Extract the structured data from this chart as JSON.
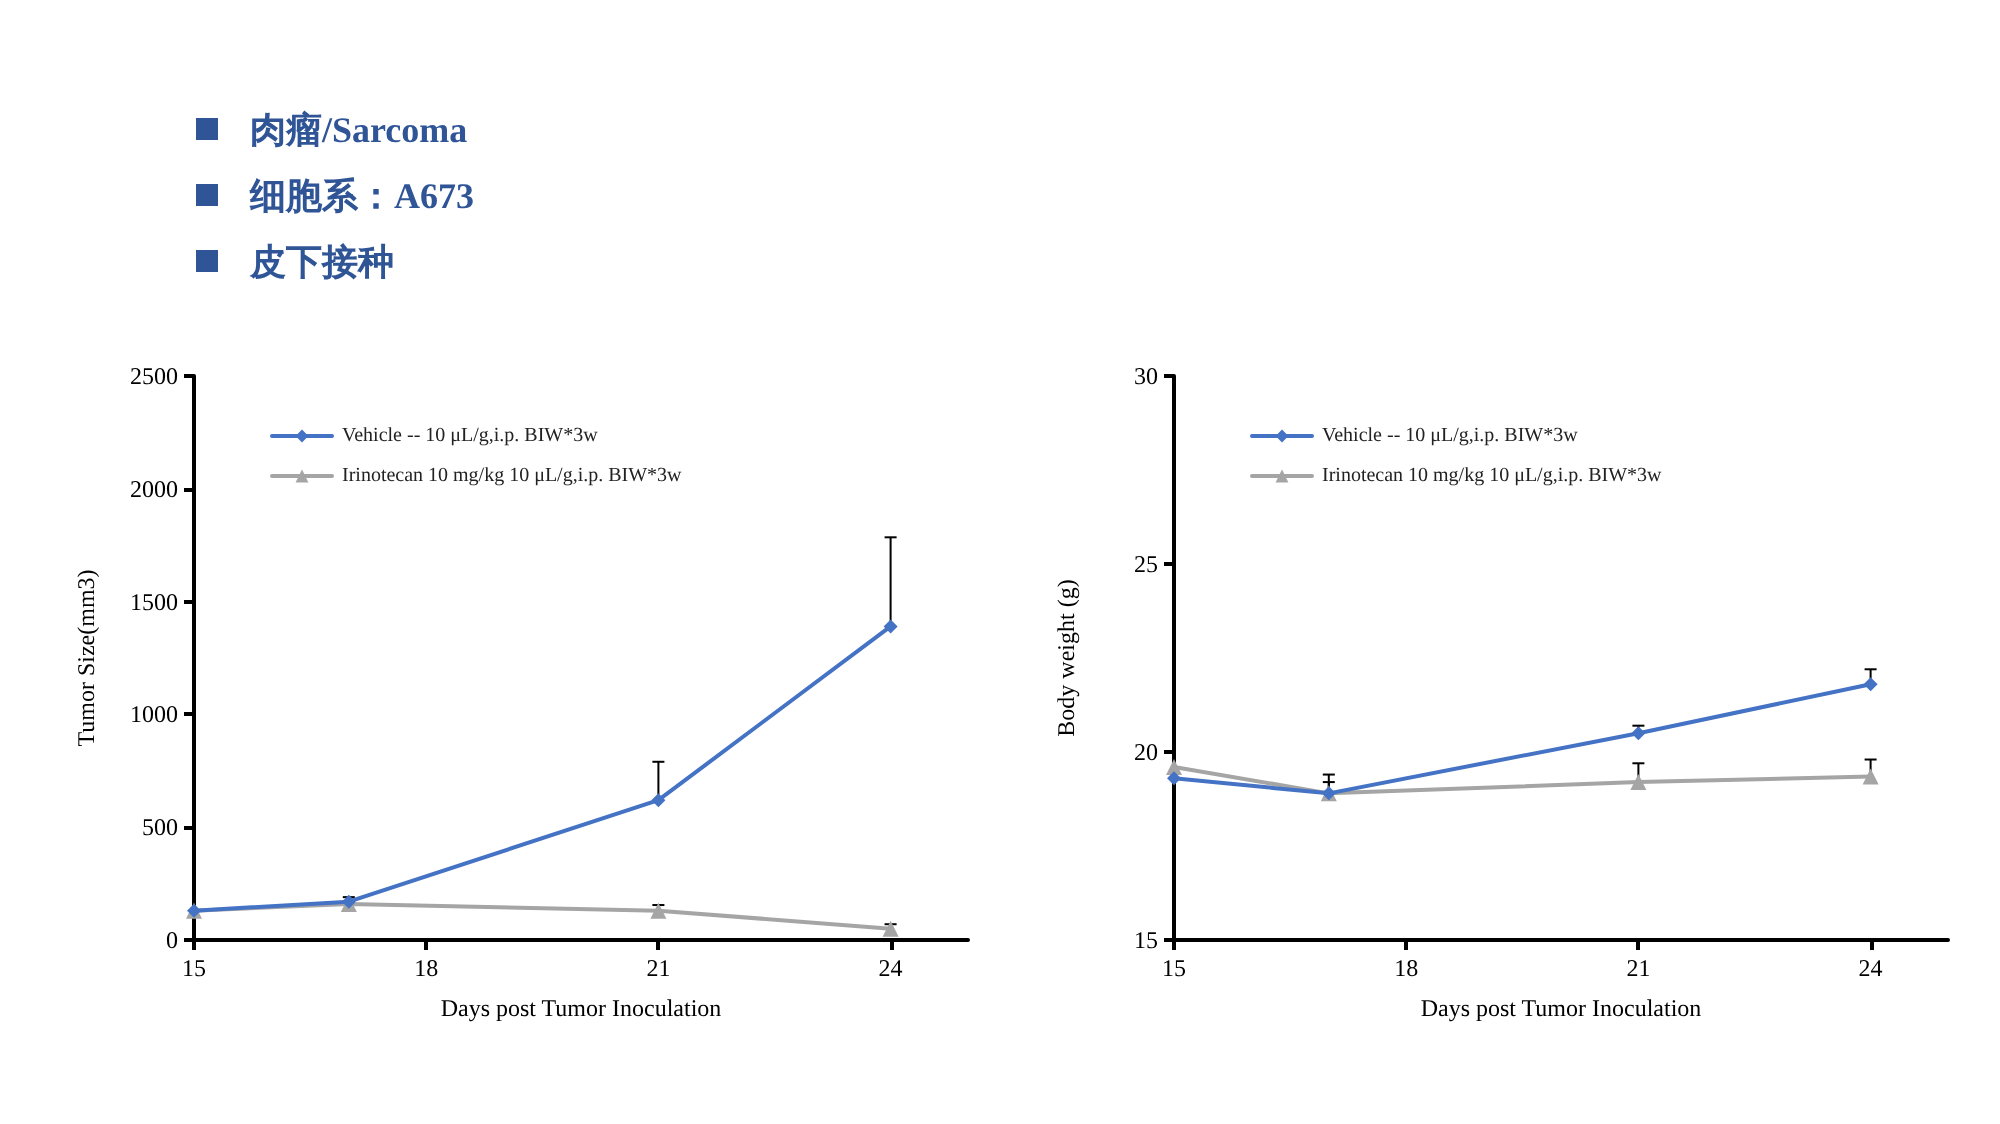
{
  "chart_data": [
    {
      "type": "other",
      "annotations": [
        "肉瘤/Sarcoma",
        "细胞系：A673",
        "皮下接种"
      ]
    },
    {
      "type": "line",
      "xlabel": "Days post Tumor Inoculation",
      "ylabel": "Tumor Size(mm3)",
      "xlim": [
        15,
        25
      ],
      "xticks": [
        15,
        18,
        21,
        24
      ],
      "ylim": [
        0,
        2500
      ],
      "yticks": [
        0,
        500,
        1000,
        1500,
        2000,
        2500
      ],
      "grid": false,
      "legend": "top left",
      "x": [
        15,
        17,
        21,
        24
      ],
      "series": [
        {
          "name": "Vehicle -- 10 μL/g,i.p. BIW*3w",
          "color": "#4472c4",
          "marker": "diamond",
          "values": [
            130,
            170,
            620,
            1390
          ],
          "errors": [
            null,
            [
              170,
              190
            ],
            [
              620,
              790
            ],
            [
              1390,
              1785
            ]
          ]
        },
        {
          "name": "Irinotecan 10 mg/kg 10 μL/g,i.p. BIW*3w",
          "color": "#a5a5a5",
          "marker": "triangle",
          "values": [
            130,
            160,
            130,
            50
          ],
          "errors": [
            null,
            [
              160,
              170
            ],
            [
              130,
              155
            ],
            [
              50,
              70
            ]
          ]
        }
      ]
    },
    {
      "type": "line",
      "xlabel": "Days post Tumor Inoculation",
      "ylabel": "Body weight (g)",
      "xlim": [
        15,
        25
      ],
      "xticks": [
        15,
        18,
        21,
        24
      ],
      "ylim": [
        15,
        30
      ],
      "yticks": [
        15,
        20,
        25,
        30
      ],
      "grid": false,
      "legend": "top left",
      "x": [
        15,
        17,
        21,
        24
      ],
      "series": [
        {
          "name": "Vehicle -- 10 μL/g,i.p. BIW*3w",
          "color": "#4472c4",
          "marker": "diamond",
          "values": [
            19.3,
            18.9,
            20.5,
            21.8
          ],
          "errors": [
            null,
            [
              18.9,
              19.4
            ],
            [
              20.5,
              20.7
            ],
            [
              21.8,
              22.2
            ]
          ]
        },
        {
          "name": "Irinotecan 10 mg/kg 10 μL/g,i.p. BIW*3w",
          "color": "#a5a5a5",
          "marker": "triangle",
          "values": [
            19.6,
            18.9,
            19.2,
            19.35
          ],
          "errors": [
            null,
            [
              18.9,
              19.2
            ],
            [
              19.2,
              19.7
            ],
            [
              19.35,
              19.8
            ]
          ]
        }
      ]
    }
  ]
}
